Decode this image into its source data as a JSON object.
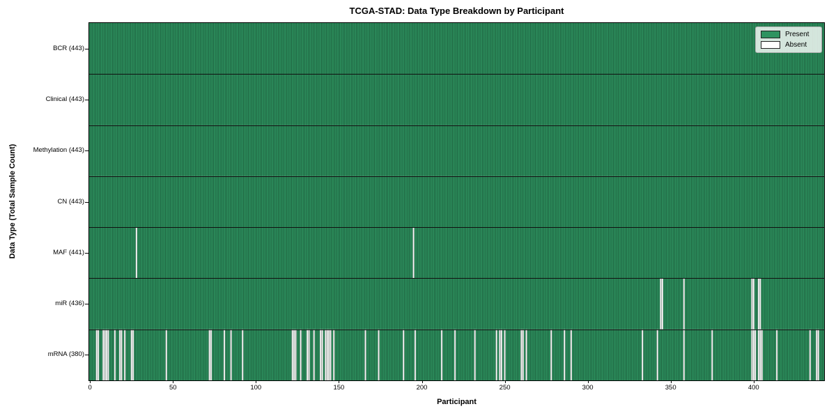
{
  "chart_data": {
    "type": "heatmap",
    "title": "TCGA-STAD: Data Type Breakdown by Participant",
    "xlabel": "Participant",
    "ylabel": "Data Type (Total Sample Count)",
    "n_participants": 443,
    "xlim": [
      -0.5,
      442.5
    ],
    "x_ticks": [
      0,
      50,
      100,
      150,
      200,
      250,
      300,
      350,
      400
    ],
    "grid": false,
    "legend": {
      "position": "upper right",
      "entries": [
        {
          "label": "Present",
          "color": "#2e9360"
        },
        {
          "label": "Absent",
          "color": "#ffffff"
        }
      ]
    },
    "colors": {
      "present": "#2e9360",
      "absent": "#ffffff",
      "bar_edge": "rgba(10,30,18,0.55)",
      "row_divider": "#101010",
      "axes": "#000000"
    },
    "rows": [
      {
        "data_type": "BCR",
        "label": "BCR (443)",
        "present_count": 443,
        "absent_participants": []
      },
      {
        "data_type": "Clinical",
        "label": "Clinical (443)",
        "present_count": 443,
        "absent_participants": []
      },
      {
        "data_type": "Methylation",
        "label": "Methylation (443)",
        "present_count": 443,
        "absent_participants": []
      },
      {
        "data_type": "CN",
        "label": "CN (443)",
        "present_count": 443,
        "absent_participants": []
      },
      {
        "data_type": "MAF",
        "label": "MAF (441)",
        "present_count": 441,
        "absent_participants": [
          28,
          195
        ]
      },
      {
        "data_type": "miR",
        "label": "miR (436)",
        "present_count": 436,
        "absent_participants": [
          344,
          345,
          358,
          399,
          400,
          403,
          404
        ]
      },
      {
        "data_type": "mRNA",
        "label": "mRNA (380)",
        "present_count": 380,
        "absent_participants": [
          4,
          5,
          8,
          9,
          10,
          11,
          15,
          18,
          19,
          21,
          25,
          26,
          46,
          72,
          73,
          81,
          85,
          92,
          122,
          123,
          124,
          127,
          131,
          132,
          135,
          139,
          140,
          142,
          143,
          144,
          145,
          147,
          166,
          174,
          189,
          196,
          212,
          220,
          232,
          245,
          247,
          248,
          250,
          260,
          261,
          263,
          278,
          286,
          290,
          333,
          342,
          358,
          375,
          399,
          400,
          401,
          403,
          404,
          405,
          414,
          434,
          438,
          439
        ]
      }
    ]
  }
}
